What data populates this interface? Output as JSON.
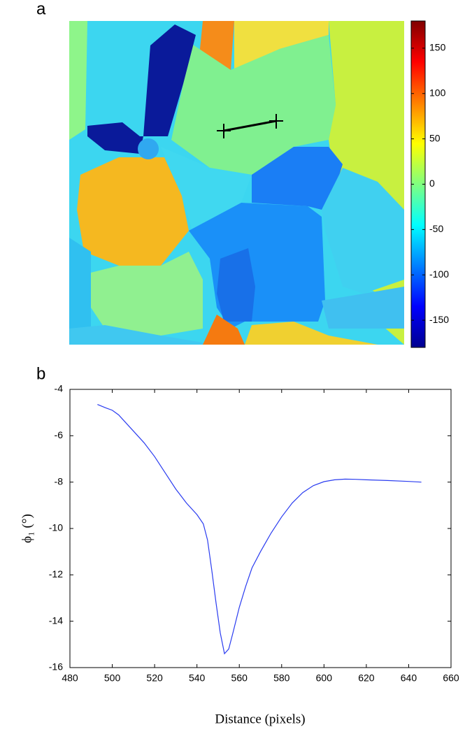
{
  "chart_data": [
    {
      "type": "map",
      "panel_label": "a",
      "colorbar": {
        "lim": [
          -180,
          180
        ],
        "ticks": [
          150,
          100,
          50,
          0,
          -50,
          -100,
          -150
        ]
      }
    },
    {
      "type": "line",
      "panel_label": "b",
      "xlabel": "Distance (pixels)",
      "ylabel": "ϕ₁ (°)",
      "xlim": [
        480,
        660
      ],
      "xticks": [
        480,
        500,
        520,
        540,
        560,
        580,
        600,
        620,
        640,
        660
      ],
      "ylim": [
        -16,
        -4
      ],
      "yticks": [
        -4,
        -6,
        -8,
        -10,
        -12,
        -14,
        -16
      ],
      "x": [
        493,
        497,
        500,
        503,
        506,
        510,
        515,
        520,
        525,
        530,
        535,
        540,
        543,
        545,
        547,
        549,
        551,
        553,
        555,
        557,
        560,
        563,
        566,
        570,
        575,
        580,
        585,
        590,
        595,
        600,
        605,
        610,
        615,
        620,
        630,
        640,
        646
      ],
      "series": [
        {
          "color": "#2a3cf0",
          "values": [
            -4.65,
            -4.8,
            -4.9,
            -5.1,
            -5.4,
            -5.8,
            -6.3,
            -6.9,
            -7.6,
            -8.3,
            -8.9,
            -9.4,
            -9.8,
            -10.5,
            -11.8,
            -13.2,
            -14.5,
            -15.4,
            -15.2,
            -14.5,
            -13.4,
            -12.5,
            -11.7,
            -11.0,
            -10.2,
            -9.5,
            -8.9,
            -8.45,
            -8.15,
            -7.98,
            -7.9,
            -7.87,
            -7.88,
            -7.9,
            -7.93,
            -7.97,
            -8.0
          ]
        }
      ]
    }
  ]
}
